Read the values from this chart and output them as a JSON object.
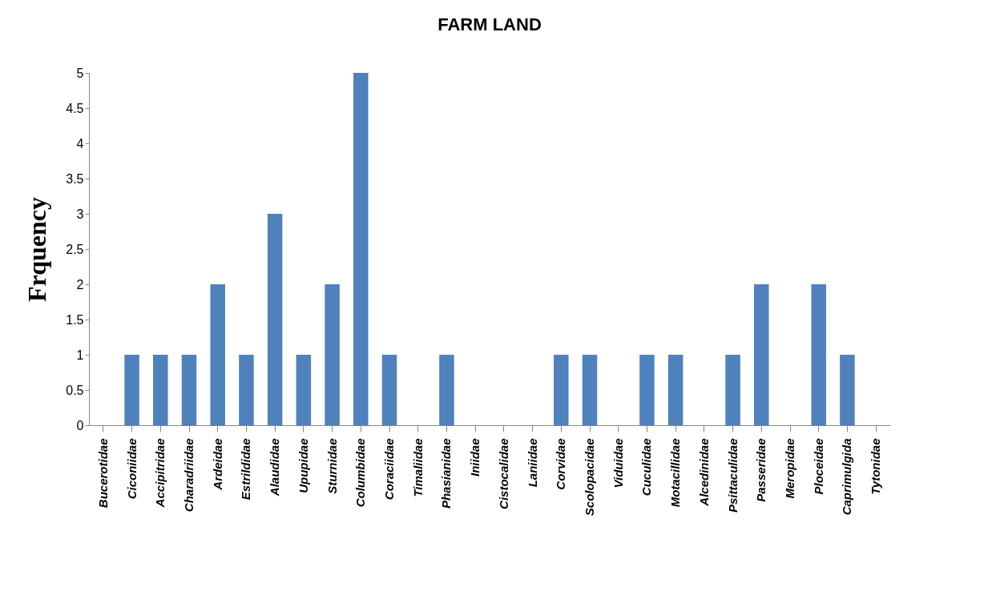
{
  "chart_data": {
    "type": "bar",
    "title": "FARM LAND",
    "ylabel": "Frquency",
    "categories": [
      "Bucerotidae",
      "Ciconiidae",
      "Accipitridae",
      "Charadriidae",
      "Ardeidae",
      "Estrildidae",
      "Alaudidae",
      "Upupidae",
      "Sturnidae",
      "Columbidae",
      "Coraciidae",
      "Timaliidae",
      "Phasianidae",
      "Iniidae",
      "Cistocalidae",
      "Laniidae",
      "Corvidae",
      "Scolopacidae",
      "Viduidae",
      "Cuculidae",
      "Motacillidae",
      "Alcedinidae",
      "Psittaculidae",
      "Passeridae",
      "Meropidae",
      "Ploceidae",
      "Caprimulgida",
      "Tytonidae"
    ],
    "values": [
      0,
      1,
      1,
      1,
      2,
      1,
      3,
      1,
      2,
      5,
      1,
      0,
      1,
      0,
      0,
      0,
      1,
      1,
      0,
      1,
      1,
      0,
      1,
      2,
      0,
      2,
      1,
      0
    ],
    "color": "#4f81bd",
    "ylim": [
      0,
      5
    ],
    "yticks": [
      0,
      0.5,
      1,
      1.5,
      2,
      2.5,
      3,
      3.5,
      4,
      4.5,
      5
    ],
    "grid": false
  }
}
